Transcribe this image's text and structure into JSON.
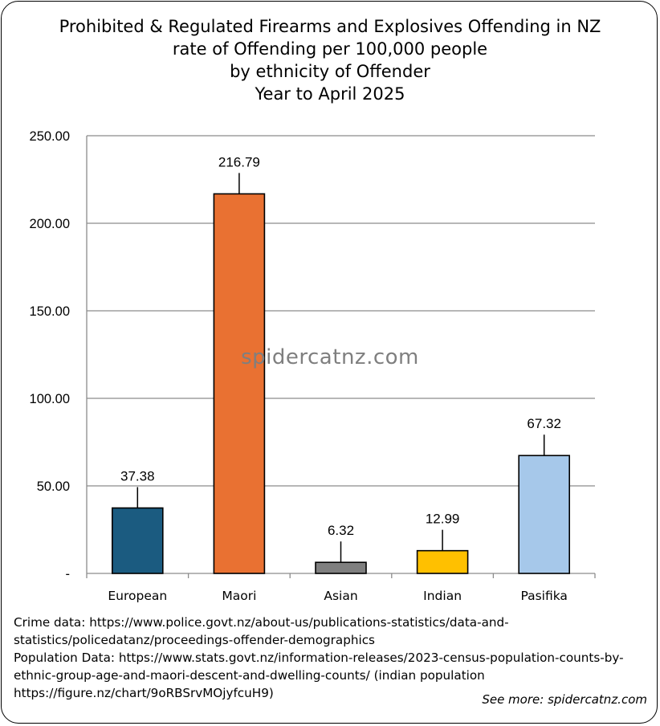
{
  "chart_data": {
    "type": "bar",
    "title_lines": [
      "Prohibited & Regulated Firearms and Explosives Offending in NZ",
      "rate of Offending per 100,000 people",
      "by ethnicity of Offender",
      "Year to April 2025"
    ],
    "categories": [
      "European",
      "Maori",
      "Asian",
      "Indian",
      "Pasifika"
    ],
    "values": [
      37.38,
      216.79,
      6.32,
      12.99,
      67.32
    ],
    "value_labels": [
      "37.38",
      "216.79",
      "6.32",
      "12.99",
      "67.32"
    ],
    "colors": [
      "#1b5b80",
      "#e97132",
      "#7f7f7f",
      "#ffc000",
      "#a6c8ea"
    ],
    "ylim": [
      0,
      250
    ],
    "yticks": [
      0,
      50,
      100,
      150,
      200,
      250
    ],
    "ytick_labels": [
      "-",
      "50.00",
      "100.00",
      "150.00",
      "200.00",
      "250.00"
    ],
    "grid": true,
    "xlabel": "",
    "ylabel": ""
  },
  "watermark": "spidercatnz.com",
  "footer": {
    "lines": [
      "Crime data: https://www.police.govt.nz/about-us/publications-statistics/data-and-",
      "statistics/policedatanz/proceedings-offender-demographics",
      "Population Data: https://www.stats.govt.nz/information-releases/2023-census-population-counts-by-",
      "ethnic-group-age-and-maori-descent-and-dwelling-counts/ (indian population",
      "https://figure.nz/chart/9oRBSrvMOjyfcuH9)"
    ],
    "see_more": "See more: spidercatnz.com"
  }
}
